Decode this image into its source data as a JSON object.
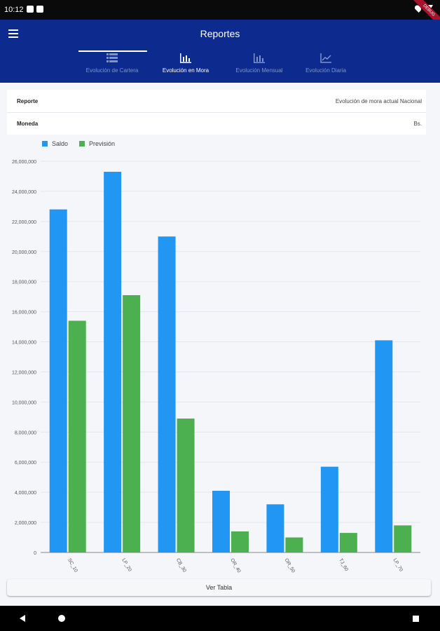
{
  "status_bar": {
    "time": "10:12",
    "debug_ribbon": "DEBUG"
  },
  "app_bar": {
    "title": "Reportes",
    "tabs": [
      {
        "label": "Evolución de Cartera",
        "icon": "list-icon",
        "active": false
      },
      {
        "label": "Evolución en Mora",
        "icon": "bar-chart-icon",
        "active": true
      },
      {
        "label": "Evolución Mensual",
        "icon": "bar-chart-icon",
        "active": false
      },
      {
        "label": "Evolución Diaria",
        "icon": "line-chart-icon",
        "active": false
      }
    ]
  },
  "info": {
    "reporte_label": "Reporte",
    "reporte_value": "Evolución de mora actual Nacional",
    "moneda_label": "Moneda",
    "moneda_value": "Bs."
  },
  "colors": {
    "saldo": "#2196f3",
    "prevision": "#4caf50",
    "appbar": "#0d2b8e"
  },
  "chart_data": {
    "type": "bar",
    "categories": [
      "SC_10",
      "LP_20",
      "CB_30",
      "OR_40",
      "OR_50",
      "TJ_60",
      "LP_70"
    ],
    "series": [
      {
        "name": "Saldo",
        "values": [
          22800000,
          25300000,
          21000000,
          4100000,
          3200000,
          5700000,
          14100000
        ]
      },
      {
        "name": "Previsión",
        "values": [
          15400000,
          17100000,
          8900000,
          1400000,
          1000000,
          1300000,
          1800000
        ]
      }
    ],
    "y_ticks": [
      "0",
      "2,000,000",
      "4,000,000",
      "6,000,000",
      "8,000,000",
      "10,000,000",
      "12,000,000",
      "14,000,000",
      "16,000,000",
      "18,000,000",
      "20,000,000",
      "22,000,000",
      "24,000,000",
      "26,000,000"
    ],
    "ylim": [
      0,
      26000000
    ],
    "grid": true,
    "legend": "top-left"
  },
  "buttons": {
    "ver_tabla": "Ver Tabla"
  }
}
